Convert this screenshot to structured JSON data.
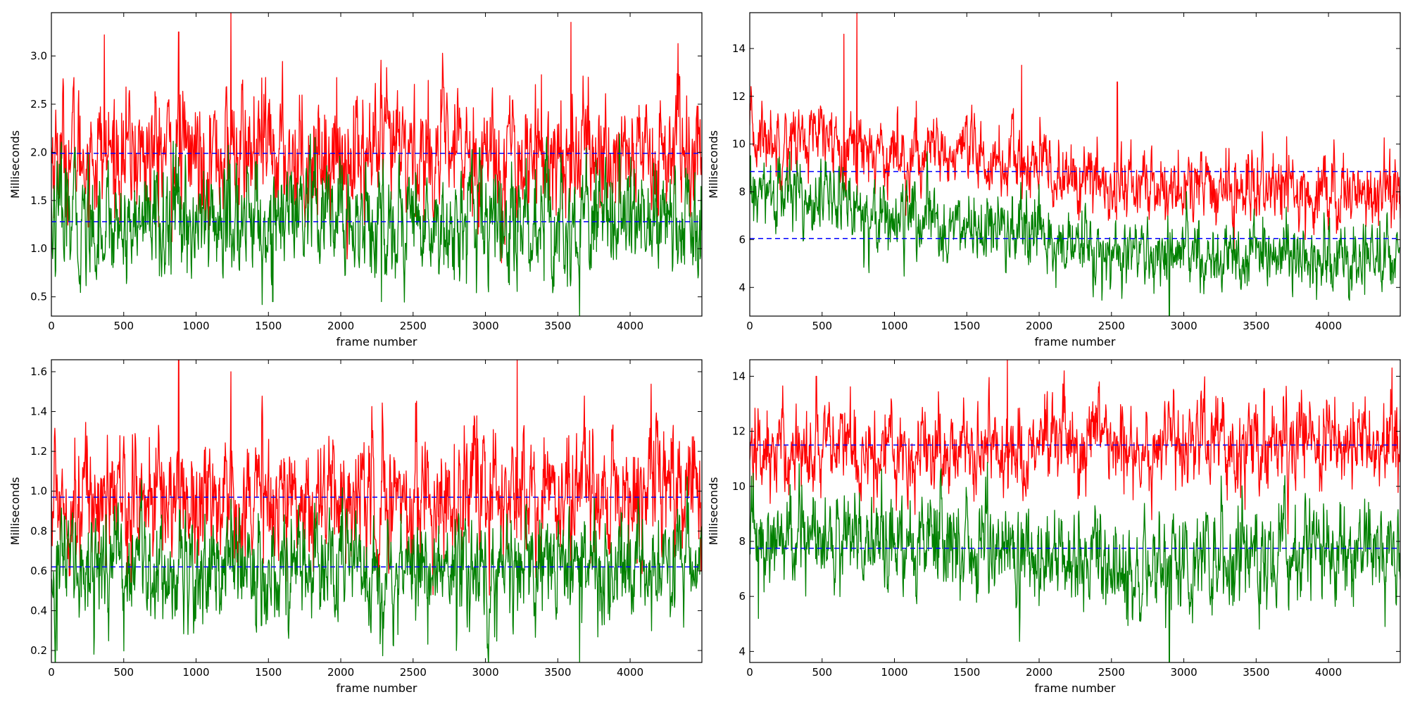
{
  "chart_data": [
    {
      "type": "line",
      "xlabel": "frame number",
      "ylabel": "Milliseconds",
      "xlim": [
        0,
        4496
      ],
      "ylim": [
        0.3,
        3.45
      ],
      "x_ticks": [
        0,
        500,
        1000,
        1500,
        2000,
        2500,
        3000,
        3500,
        4000
      ],
      "y_ticks": [
        0.5,
        1.0,
        1.5,
        2.0,
        2.5,
        3.0
      ],
      "y_tick_labels": [
        "0.5",
        "1.0",
        "1.5",
        "2.0",
        "2.5",
        "3.0"
      ],
      "grid": false,
      "series": [
        {
          "color": "#ff0000",
          "mean": 1.99,
          "spread": 0.33,
          "trend": [
            [
              0,
              1.99
            ],
            [
              4496,
              1.99
            ]
          ],
          "spikes": [
            [
              1240,
              3.45
            ],
            [
              3590,
              3.35
            ],
            [
              365,
              3.22
            ],
            [
              880,
              3.25
            ]
          ]
        },
        {
          "color": "#008000",
          "mean": 1.28,
          "spread": 0.3,
          "trend": [
            [
              0,
              1.28
            ],
            [
              4496,
              1.28
            ]
          ],
          "spikes": [
            [
              3650,
              0.3
            ],
            [
              1530,
              0.45
            ],
            [
              2280,
              0.45
            ]
          ]
        }
      ],
      "reference_lines": [
        {
          "y": 1.99,
          "color": "#0000ff",
          "style": "dashed"
        },
        {
          "y": 1.28,
          "color": "#0000ff",
          "style": "dashed"
        }
      ]
    },
    {
      "type": "line",
      "xlabel": "frame number",
      "ylabel": "Milliseconds",
      "xlim": [
        0,
        4496
      ],
      "ylim": [
        2.8,
        15.5
      ],
      "x_ticks": [
        0,
        500,
        1000,
        1500,
        2000,
        2500,
        3000,
        3500,
        4000
      ],
      "y_ticks": [
        4,
        6,
        8,
        10,
        12,
        14
      ],
      "y_tick_labels": [
        "4",
        "6",
        "8",
        "10",
        "12",
        "14"
      ],
      "grid": false,
      "series": [
        {
          "color": "#ff0000",
          "mean": 8.9,
          "spread": 0.75,
          "trend": [
            [
              0,
              10.3
            ],
            [
              500,
              10.2
            ],
            [
              1000,
              9.6
            ],
            [
              1500,
              9.4
            ],
            [
              2000,
              9.0
            ],
            [
              2300,
              8.4
            ],
            [
              3000,
              8.1
            ],
            [
              4496,
              8.0
            ]
          ],
          "spikes": [
            [
              740,
              15.5
            ],
            [
              650,
              14.6
            ],
            [
              1880,
              13.3
            ],
            [
              2540,
              12.6
            ],
            [
              1150,
              11.8
            ]
          ]
        },
        {
          "color": "#008000",
          "mean": 6.1,
          "spread": 0.75,
          "trend": [
            [
              0,
              7.7
            ],
            [
              400,
              8.0
            ],
            [
              1000,
              6.9
            ],
            [
              1500,
              6.5
            ],
            [
              2000,
              6.0
            ],
            [
              2500,
              5.2
            ],
            [
              3000,
              5.3
            ],
            [
              4496,
              5.2
            ]
          ],
          "spikes": [
            [
              2900,
              2.8
            ]
          ]
        }
      ],
      "reference_lines": [
        {
          "y": 8.85,
          "color": "#0000ff",
          "style": "dashed"
        },
        {
          "y": 6.05,
          "color": "#0000ff",
          "style": "dashed"
        }
      ]
    },
    {
      "type": "line",
      "xlabel": "frame number",
      "ylabel": "Milliseconds",
      "xlim": [
        0,
        4496
      ],
      "ylim": [
        0.14,
        1.66
      ],
      "x_ticks": [
        0,
        500,
        1000,
        1500,
        2000,
        2500,
        3000,
        3500,
        4000
      ],
      "y_ticks": [
        0.2,
        0.4,
        0.6,
        0.8,
        1.0,
        1.2,
        1.4,
        1.6
      ],
      "y_tick_labels": [
        "0.2",
        "0.4",
        "0.6",
        "0.8",
        "1.0",
        "1.2",
        "1.4",
        "1.6"
      ],
      "grid": false,
      "series": [
        {
          "color": "#ff0000",
          "mean": 0.97,
          "spread": 0.16,
          "trend": [
            [
              0,
              0.97
            ],
            [
              4496,
              0.97
            ]
          ],
          "spikes": [
            [
              880,
              1.66
            ],
            [
              3220,
              1.66
            ],
            [
              1240,
              1.6
            ]
          ]
        },
        {
          "color": "#008000",
          "mean": 0.62,
          "spread": 0.14,
          "trend": [
            [
              0,
              0.62
            ],
            [
              4496,
              0.62
            ]
          ],
          "spikes": [
            [
              3650,
              0.14
            ],
            [
              40,
              0.2
            ],
            [
              2800,
              0.2
            ]
          ]
        }
      ],
      "reference_lines": [
        {
          "y": 0.97,
          "color": "#0000ff",
          "style": "dashed"
        },
        {
          "y": 0.62,
          "color": "#0000ff",
          "style": "dashed"
        }
      ]
    },
    {
      "type": "line",
      "xlabel": "frame number",
      "ylabel": "Milliseconds",
      "xlim": [
        0,
        4496
      ],
      "ylim": [
        3.6,
        14.6
      ],
      "x_ticks": [
        0,
        500,
        1000,
        1500,
        2000,
        2500,
        3000,
        3500,
        4000
      ],
      "y_ticks": [
        4,
        6,
        8,
        10,
        12,
        14
      ],
      "y_tick_labels": [
        "4",
        "6",
        "8",
        "10",
        "12",
        "14"
      ],
      "grid": false,
      "series": [
        {
          "color": "#ff0000",
          "mean": 11.5,
          "spread": 0.85,
          "trend": [
            [
              0,
              11.3
            ],
            [
              4496,
              11.6
            ]
          ],
          "spikes": [
            [
              1780,
              14.6
            ],
            [
              4440,
              14.3
            ],
            [
              460,
              14.0
            ]
          ]
        },
        {
          "color": "#008000",
          "mean": 7.75,
          "spread": 0.9,
          "trend": [
            [
              0,
              7.9
            ],
            [
              1500,
              8.0
            ],
            [
              2500,
              7.1
            ],
            [
              3000,
              7.3
            ],
            [
              4496,
              7.6
            ]
          ],
          "spikes": [
            [
              2900,
              3.6
            ],
            [
              60,
              5.2
            ]
          ]
        }
      ],
      "reference_lines": [
        {
          "y": 11.5,
          "color": "#0000ff",
          "style": "dashed"
        },
        {
          "y": 7.75,
          "color": "#0000ff",
          "style": "dashed"
        }
      ]
    }
  ]
}
